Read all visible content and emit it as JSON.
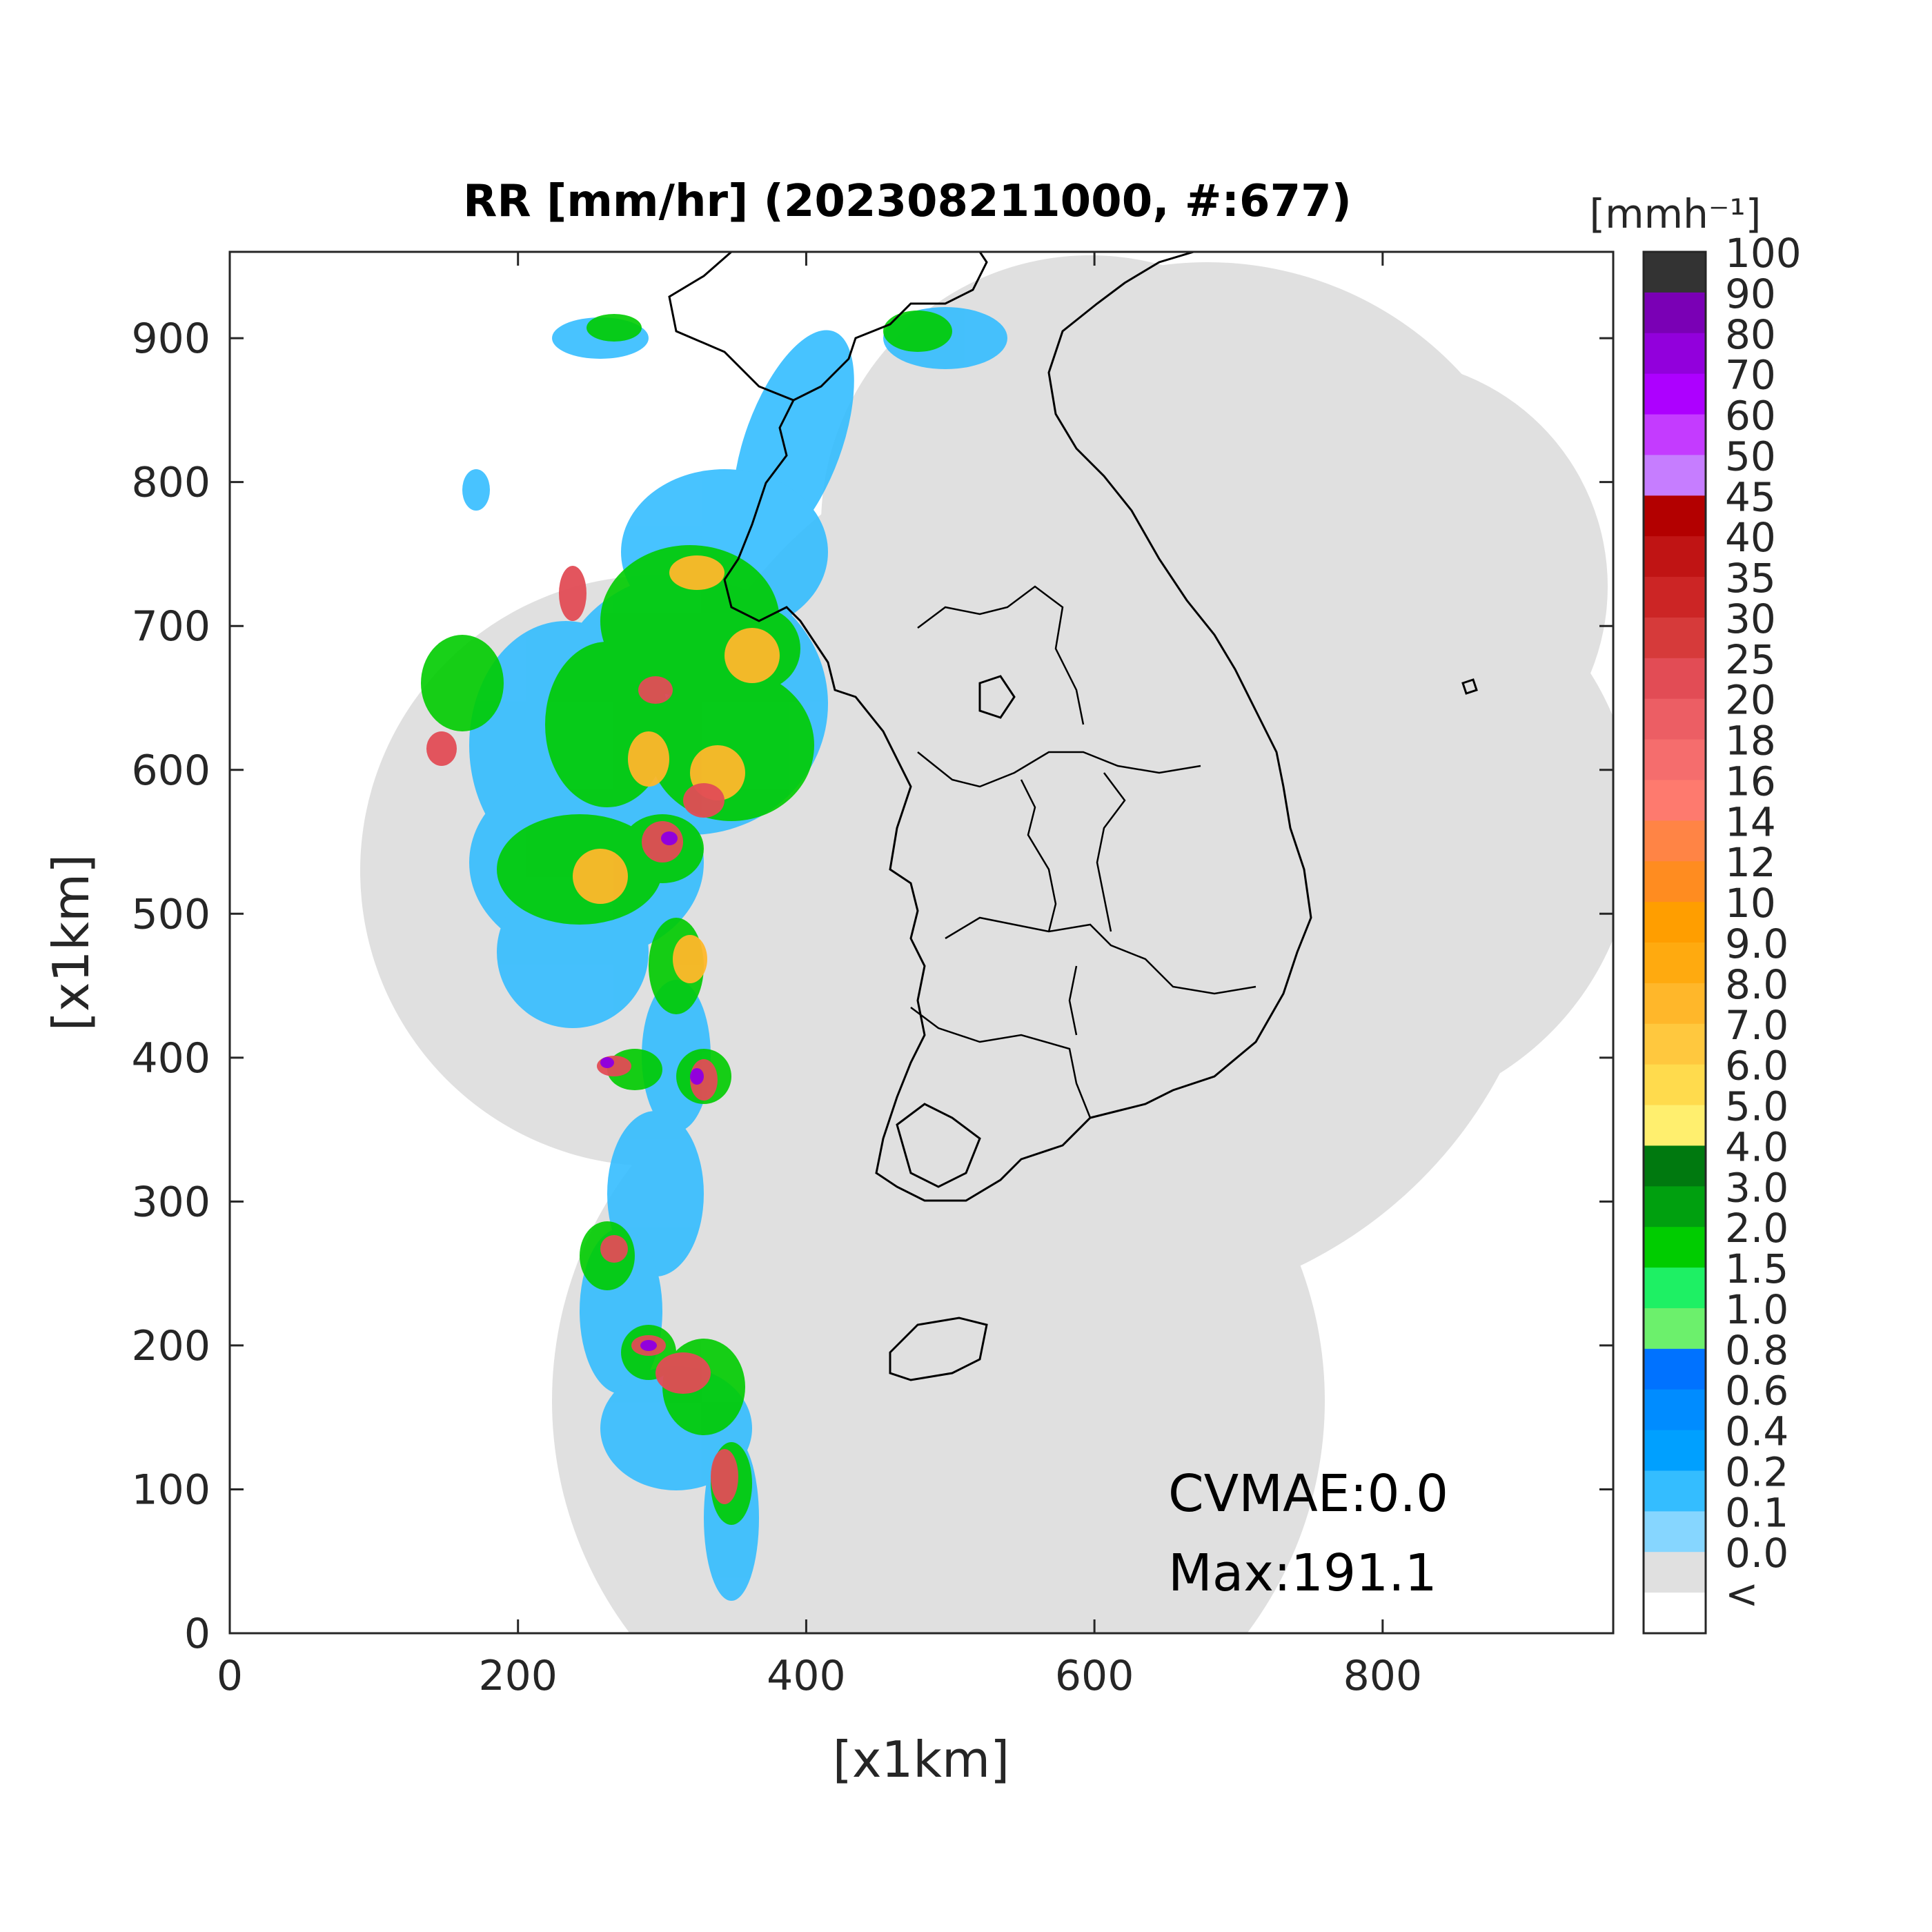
{
  "chart_data": {
    "type": "heatmap",
    "title": "RR [mm/hr] (202308211000, #:677)",
    "xlabel": "[x1km]",
    "ylabel": "[x1km]",
    "xlim": [
      0,
      960
    ],
    "ylim": [
      0,
      960
    ],
    "xticks": [
      "0",
      "200",
      "400",
      "600",
      "800"
    ],
    "yticks": [
      "0",
      "100",
      "200",
      "300",
      "400",
      "500",
      "600",
      "700",
      "800",
      "900"
    ],
    "colorbar": {
      "unit_label": "[mmh⁻¹]",
      "labels": [
        "100",
        "90",
        "80",
        "70",
        "60",
        "50",
        "45",
        "40",
        "35",
        "30",
        "25",
        "20",
        "18",
        "16",
        "14",
        "12",
        "10",
        "9.0",
        "8.0",
        "7.0",
        "6.0",
        "5.0",
        "4.0",
        "3.0",
        "2.0",
        "1.5",
        "1.0",
        "0.8",
        "0.6",
        "0.4",
        "0.2",
        "0.1",
        "0.0",
        "<"
      ],
      "colors": [
        "#333333",
        "#7a00b5",
        "#9200dc",
        "#ad00ff",
        "#c43bff",
        "#c67dff",
        "#b30000",
        "#c01414",
        "#cc2525",
        "#d63a3a",
        "#e24c55",
        "#ec5e64",
        "#f56d6d",
        "#fe7a6e",
        "#ff8445",
        "#ff8c20",
        "#ff9e00",
        "#ffaa0f",
        "#ffb72a",
        "#ffc83e",
        "#ffdb4d",
        "#ffef6e",
        "#00790f",
        "#00a00f",
        "#00cc00",
        "#1ef064",
        "#6cf06c",
        "#0072ff",
        "#008cff",
        "#00a0ff",
        "#34bdff",
        "#86d6ff",
        "#e0e0e0",
        "#ffffff"
      ]
    },
    "annotations": {
      "cvmae": "CVMAE:0.0",
      "max": "Max:191.1"
    },
    "background_color": "#e0e0e0",
    "grid": false
  }
}
